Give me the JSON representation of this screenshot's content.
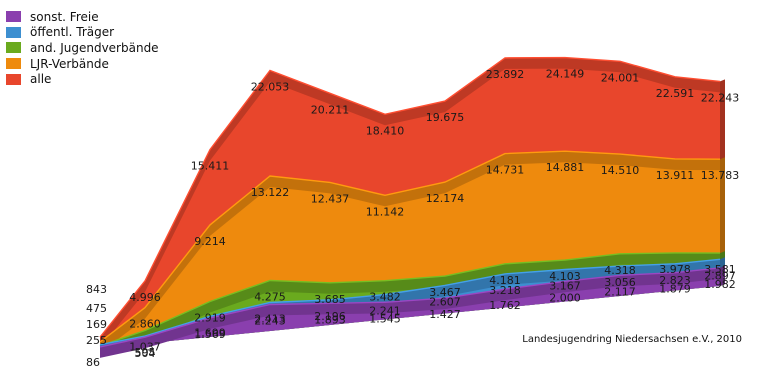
{
  "chart_data": {
    "type": "area",
    "stacked": true,
    "perspective": "3d",
    "legend_position": "top-left",
    "grid": false,
    "series": [
      {
        "name": "sonst. Freie",
        "color": "#8a3fae",
        "values": [
          86,
          504,
          1569,
          2243,
          1893,
          1545,
          1427,
          1762,
          2000,
          2117,
          1879,
          1982
        ]
      },
      {
        "name": "öffentl. Träger",
        "color": "#3d8fd0",
        "values": [
          255,
          595,
          1699,
          2413,
          2196,
          2241,
          2607,
          3218,
          3167,
          3056,
          2823,
          2897
        ]
      },
      {
        "name": "and. Jugendverbände",
        "color": "#6aaa1e",
        "values": [
          169,
          1037,
          2919,
          4275,
          3685,
          3482,
          3467,
          4181,
          4103,
          4318,
          3978,
          3581
        ]
      },
      {
        "name": "LJR-Verbände",
        "color": "#ee8a0d",
        "values": [
          475,
          2860,
          9214,
          13122,
          12437,
          11142,
          12174,
          14731,
          14881,
          14510,
          13911,
          13783
        ]
      },
      {
        "name": "alle",
        "color": "#e8462c",
        "values": [
          843,
          4996,
          15411,
          22053,
          20211,
          18410,
          19675,
          23892,
          24149,
          24001,
          22591,
          22243
        ]
      }
    ],
    "value_labels": {
      "sonst. Freie": [
        "86",
        "504",
        "1.569",
        "2.243",
        "1.893",
        "1.545",
        "1.427",
        "1.762",
        "2.000",
        "2.117",
        "1.879",
        "1.982"
      ],
      "öffentl. Träger": [
        "255",
        "595",
        "1.699",
        "2.413",
        "2.196",
        "2.241",
        "2.607",
        "3.218",
        "3.167",
        "3.056",
        "2.823",
        "2.897"
      ],
      "and. Jugendverbände": [
        "169",
        "1.037",
        "2.919",
        "4.275",
        "3.685",
        "3.482",
        "3.467",
        "4.181",
        "4.103",
        "4.318",
        "3.978",
        "3.581"
      ],
      "LJR-Verbände": [
        "475",
        "2.860",
        "9.214",
        "13.122",
        "12.437",
        "11.142",
        "12.174",
        "14.731",
        "14.881",
        "14.510",
        "13.911",
        "13.783"
      ],
      "alle": [
        "843",
        "4.996",
        "15.411",
        "22.053",
        "20.211",
        "18.410",
        "19.675",
        "23.892",
        "24.149",
        "24.001",
        "22.591",
        "22.243"
      ]
    },
    "annotation": "Landesjugendring Niedersachsen e.V., 2010"
  }
}
